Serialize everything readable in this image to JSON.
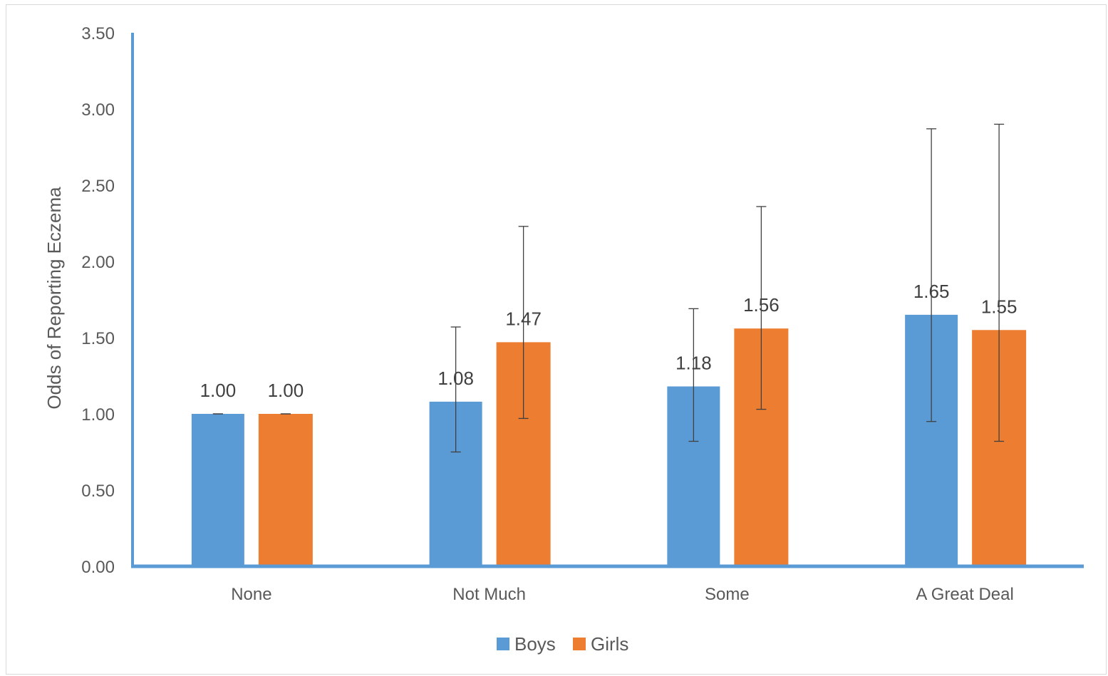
{
  "chart_data": {
    "type": "bar",
    "title": "",
    "xlabel": "",
    "ylabel": "Odds of Reporting Eczema",
    "ylim": [
      0,
      3.5
    ],
    "yticks": [
      "0.00",
      "0.50",
      "1.00",
      "1.50",
      "2.00",
      "2.50",
      "3.00",
      "3.50"
    ],
    "categories": [
      "None",
      "Not Much",
      "Some",
      "A Great Deal"
    ],
    "series": [
      {
        "name": "Boys",
        "color": "#5b9bd5",
        "values": [
          1.0,
          1.08,
          1.18,
          1.65
        ],
        "labels": [
          "1.00",
          "1.08",
          "1.18",
          "1.65"
        ],
        "error_low": [
          1.0,
          0.75,
          0.82,
          0.95
        ],
        "error_high": [
          1.0,
          1.57,
          1.69,
          2.87
        ]
      },
      {
        "name": "Girls",
        "color": "#ed7d31",
        "values": [
          1.0,
          1.47,
          1.56,
          1.55
        ],
        "labels": [
          "1.00",
          "1.47",
          "1.56",
          "1.55"
        ],
        "error_low": [
          1.0,
          0.97,
          1.03,
          0.82
        ],
        "error_high": [
          1.0,
          2.23,
          2.36,
          2.9
        ]
      }
    ],
    "grid": false,
    "legend_position": "bottom",
    "axis_color": "#5b9bd5"
  }
}
